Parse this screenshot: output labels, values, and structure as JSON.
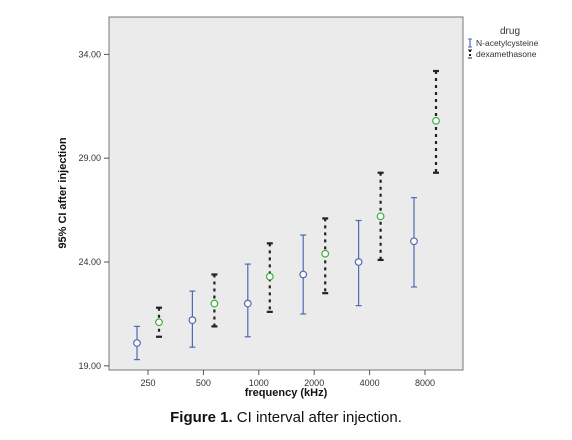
{
  "chart_data": {
    "type": "errorbar",
    "xlabel": "frequency (kHz)",
    "ylabel": "95% CI after injection",
    "categories": [
      "250",
      "500",
      "1000",
      "2000",
      "4000",
      "8000"
    ],
    "ylim": [
      18.8,
      35.8
    ],
    "yticks": [
      19.0,
      24.0,
      29.0,
      34.0
    ],
    "ytick_labels": [
      "19.00",
      "24.00",
      "29.00",
      "34.00"
    ],
    "legend": {
      "title": "drug",
      "position": "top-right-outside",
      "entries": [
        "N-acetylcysteine",
        "dexamethasone"
      ]
    },
    "series": [
      {
        "name": "N-acetylcysteine",
        "color": "#4f6ab0",
        "line_style": "solid",
        "mean": [
          20.1,
          21.2,
          22.0,
          23.4,
          24.0,
          25.0
        ],
        "lower": [
          19.3,
          19.9,
          20.4,
          21.5,
          21.9,
          22.8
        ],
        "upper": [
          20.9,
          22.6,
          23.9,
          25.3,
          26.0,
          27.1
        ]
      },
      {
        "name": "dexamethasone",
        "color": "#222222",
        "marker_color": "#3cae3c",
        "line_style": "dotted",
        "mean": [
          21.1,
          22.0,
          23.3,
          24.4,
          26.2,
          30.8
        ],
        "lower": [
          20.4,
          20.9,
          21.6,
          22.5,
          24.1,
          28.3
        ],
        "upper": [
          21.8,
          23.4,
          24.9,
          26.1,
          28.3,
          33.2
        ]
      }
    ]
  },
  "caption": {
    "label": "Figure 1.",
    "text": " CI interval after injection."
  }
}
